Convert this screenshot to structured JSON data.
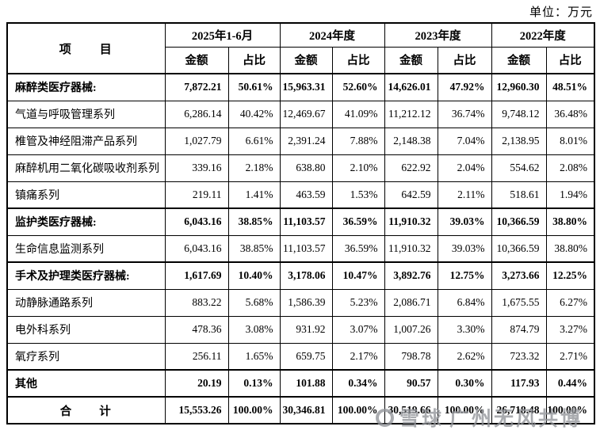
{
  "meta": {
    "unit_label": "单位：万元"
  },
  "table": {
    "item_header": "项　　目",
    "periods": [
      "2025年1-6月",
      "2024年度",
      "2023年度",
      "2022年度"
    ],
    "col_headers": {
      "amount": "金额",
      "share": "占比"
    },
    "rows": [
      {
        "name": "麻醉类医疗器械:",
        "bold": true,
        "center": false,
        "values": [
          "7,872.21",
          "50.61%",
          "15,963.31",
          "52.60%",
          "14,626.01",
          "47.92%",
          "12,960.30",
          "48.51%"
        ]
      },
      {
        "name": "气道与呼吸管理系列",
        "bold": false,
        "center": false,
        "values": [
          "6,286.14",
          "40.42%",
          "12,469.67",
          "41.09%",
          "11,212.12",
          "36.74%",
          "9,748.12",
          "36.48%"
        ]
      },
      {
        "name": "椎管及神经阻滞产品系列",
        "bold": false,
        "center": false,
        "values": [
          "1,027.79",
          "6.61%",
          "2,391.24",
          "7.88%",
          "2,148.38",
          "7.04%",
          "2,138.95",
          "8.01%"
        ]
      },
      {
        "name": "麻醉机用二氧化碳吸收剂系列",
        "bold": false,
        "center": false,
        "values": [
          "339.16",
          "2.18%",
          "638.80",
          "2.10%",
          "622.92",
          "2.04%",
          "554.62",
          "2.08%"
        ]
      },
      {
        "name": "镇痛系列",
        "bold": false,
        "center": false,
        "values": [
          "219.11",
          "1.41%",
          "463.59",
          "1.53%",
          "642.59",
          "2.11%",
          "518.61",
          "1.94%"
        ]
      },
      {
        "name": "监护类医疗器械:",
        "bold": true,
        "center": false,
        "values": [
          "6,043.16",
          "38.85%",
          "11,103.57",
          "36.59%",
          "11,910.32",
          "39.03%",
          "10,366.59",
          "38.80%"
        ]
      },
      {
        "name": "生命信息监测系列",
        "bold": false,
        "center": false,
        "values": [
          "6,043.16",
          "38.85%",
          "11,103.57",
          "36.59%",
          "11,910.32",
          "39.03%",
          "10,366.59",
          "38.80%"
        ]
      },
      {
        "name": "手术及护理类医疗器械:",
        "bold": true,
        "center": false,
        "values": [
          "1,617.69",
          "10.40%",
          "3,178.06",
          "10.47%",
          "3,892.76",
          "12.75%",
          "3,273.66",
          "12.25%"
        ]
      },
      {
        "name": "动静脉通路系列",
        "bold": false,
        "center": false,
        "values": [
          "883.22",
          "5.68%",
          "1,586.39",
          "5.23%",
          "2,086.71",
          "6.84%",
          "1,675.55",
          "6.27%"
        ]
      },
      {
        "name": "电外科系列",
        "bold": false,
        "center": false,
        "values": [
          "478.36",
          "3.08%",
          "931.92",
          "3.07%",
          "1,007.26",
          "3.30%",
          "874.79",
          "3.27%"
        ]
      },
      {
        "name": "氧疗系列",
        "bold": false,
        "center": false,
        "values": [
          "256.11",
          "1.65%",
          "659.75",
          "2.17%",
          "798.78",
          "2.62%",
          "723.32",
          "2.71%"
        ]
      },
      {
        "name": "其他",
        "bold": true,
        "center": false,
        "values": [
          "20.19",
          "0.13%",
          "101.88",
          "0.34%",
          "90.57",
          "0.30%",
          "117.93",
          "0.44%"
        ]
      },
      {
        "name": "合　　计",
        "bold": true,
        "center": true,
        "values": [
          "15,553.26",
          "100.00%",
          "30,346.81",
          "100.00%",
          "30,519.66",
          "100.00%",
          "26,718.48",
          "100.00%"
        ]
      }
    ]
  },
  "watermark": {
    "source": "雪球",
    "user": "广州无风共博"
  }
}
